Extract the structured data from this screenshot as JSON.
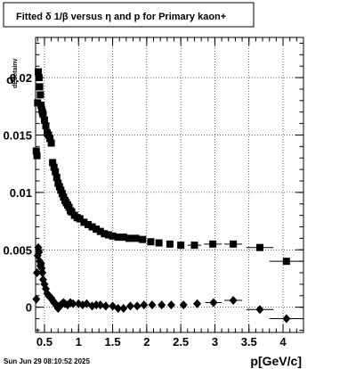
{
  "title": "Fitted δ 1/β versus η and p for Primary kaon+",
  "timestamp": "Sun Jun 29 08:10:52 2025",
  "chart_data": {
    "type": "scatter",
    "xlabel": "p[GeV/c]",
    "ylabel_main": "σ",
    "ylabel_sub": "dEdetainv",
    "xlim": [
      0.37,
      4.3
    ],
    "ylim": [
      -0.0022,
      0.0235
    ],
    "x_ticks": [
      0.5,
      1,
      1.5,
      2,
      2.5,
      3,
      3.5,
      4
    ],
    "x_tick_labels": [
      "0.5",
      "1",
      "1.5",
      "2",
      "2.5",
      "3",
      "3.5",
      "4"
    ],
    "y_ticks": [
      0,
      0.005,
      0.01,
      0.015,
      0.02
    ],
    "y_tick_labels": [
      "0",
      "0.005",
      "0.01",
      "0.015",
      "0.02"
    ],
    "grid": true,
    "series": [
      {
        "marker": "square",
        "points": [
          [
            0.38,
            0.0136
          ],
          [
            0.39,
            0.0132
          ],
          [
            0.4,
            0.0178
          ],
          [
            0.41,
            0.0205
          ],
          [
            0.42,
            0.02
          ],
          [
            0.43,
            0.0192
          ],
          [
            0.44,
            0.0185
          ],
          [
            0.45,
            0.0176
          ],
          [
            0.46,
            0.0172
          ],
          [
            0.47,
            0.017
          ],
          [
            0.48,
            0.0168
          ],
          [
            0.5,
            0.0163
          ],
          [
            0.52,
            0.0158
          ],
          [
            0.54,
            0.0152
          ],
          [
            0.56,
            0.015
          ],
          [
            0.58,
            0.0147
          ],
          [
            0.6,
            0.0143
          ],
          [
            0.62,
            0.0126
          ],
          [
            0.64,
            0.0122
          ],
          [
            0.66,
            0.0118
          ],
          [
            0.68,
            0.0113
          ],
          [
            0.7,
            0.0108
          ],
          [
            0.72,
            0.0105
          ],
          [
            0.74,
            0.0102
          ],
          [
            0.76,
            0.0099
          ],
          [
            0.78,
            0.0096
          ],
          [
            0.8,
            0.0093
          ],
          [
            0.82,
            0.0091
          ],
          [
            0.84,
            0.0089
          ],
          [
            0.86,
            0.0087
          ],
          [
            0.88,
            0.0084
          ],
          [
            0.9,
            0.0083
          ],
          [
            0.94,
            0.008
          ],
          [
            0.98,
            0.0078
          ],
          [
            1.02,
            0.0077
          ],
          [
            1.08,
            0.0074
          ],
          [
            1.14,
            0.0072
          ],
          [
            1.2,
            0.007
          ],
          [
            1.26,
            0.0068
          ],
          [
            1.32,
            0.0066
          ],
          [
            1.38,
            0.0064
          ],
          [
            1.44,
            0.0063
          ],
          [
            1.5,
            0.0062
          ],
          [
            1.58,
            0.0061
          ],
          [
            1.66,
            0.0061
          ],
          [
            1.74,
            0.006
          ],
          [
            1.84,
            0.006
          ],
          [
            1.94,
            0.0059
          ],
          [
            2.06,
            0.0057
          ],
          [
            2.18,
            0.0056
          ],
          [
            2.34,
            0.0055
          ],
          [
            2.5,
            0.0054
          ],
          [
            2.7,
            0.0054
          ],
          [
            2.97,
            0.0055
          ],
          [
            3.27,
            0.0055
          ],
          [
            3.66,
            0.0052
          ],
          [
            4.05,
            0.004
          ]
        ],
        "xerr": [
          [
            3.27,
            0.13
          ],
          [
            3.66,
            0.2
          ],
          [
            4.05,
            0.25
          ],
          [
            2.97,
            0.13
          ],
          [
            2.7,
            0.1
          ]
        ]
      },
      {
        "marker": "diamond",
        "points": [
          [
            0.38,
            0.0007
          ],
          [
            0.39,
            0.003
          ],
          [
            0.4,
            0.0045
          ],
          [
            0.41,
            0.0052
          ],
          [
            0.42,
            0.0048
          ],
          [
            0.43,
            0.004
          ],
          [
            0.44,
            0.0036
          ],
          [
            0.45,
            0.0038
          ],
          [
            0.46,
            0.0034
          ],
          [
            0.47,
            0.003
          ],
          [
            0.48,
            0.0024
          ],
          [
            0.5,
            0.002
          ],
          [
            0.52,
            0.0016
          ],
          [
            0.54,
            0.0012
          ],
          [
            0.56,
            0.001
          ],
          [
            0.58,
            0.0009
          ],
          [
            0.6,
            0.0008
          ],
          [
            0.62,
            0.0006
          ],
          [
            0.64,
            0.0004
          ],
          [
            0.66,
            0.0003
          ],
          [
            0.68,
            0.0001
          ],
          [
            0.7,
            -0.0001
          ],
          [
            0.72,
            0.0001
          ],
          [
            0.74,
            0.0002
          ],
          [
            0.76,
            0.0003
          ],
          [
            0.78,
            0.0004
          ],
          [
            0.8,
            0.0003
          ],
          [
            0.84,
            0.0002
          ],
          [
            0.88,
            0.0004
          ],
          [
            0.92,
            0.0003
          ],
          [
            1.0,
            0.0003
          ],
          [
            1.06,
            0.0002
          ],
          [
            1.12,
            0.0003
          ],
          [
            1.2,
            0.0001
          ],
          [
            1.26,
            0.0002
          ],
          [
            1.32,
            0.0002
          ],
          [
            1.4,
            0.0001
          ],
          [
            1.5,
            0.0001
          ],
          [
            1.58,
            -0.0001
          ],
          [
            1.66,
            -0.0001
          ],
          [
            1.76,
            0.0001
          ],
          [
            1.86,
            0.0001
          ],
          [
            1.96,
            0.0002
          ],
          [
            2.08,
            0.0002
          ],
          [
            2.22,
            0.0002
          ],
          [
            2.36,
            0.0002
          ],
          [
            2.54,
            0.0002
          ],
          [
            2.74,
            0.0003
          ],
          [
            2.98,
            0.0004
          ],
          [
            3.27,
            0.0006
          ],
          [
            3.66,
            -0.0002
          ],
          [
            4.05,
            -0.001
          ]
        ],
        "xerr": [
          [
            3.27,
            0.13
          ],
          [
            3.66,
            0.2
          ],
          [
            4.05,
            0.25
          ],
          [
            2.98,
            0.12
          ]
        ]
      }
    ]
  }
}
